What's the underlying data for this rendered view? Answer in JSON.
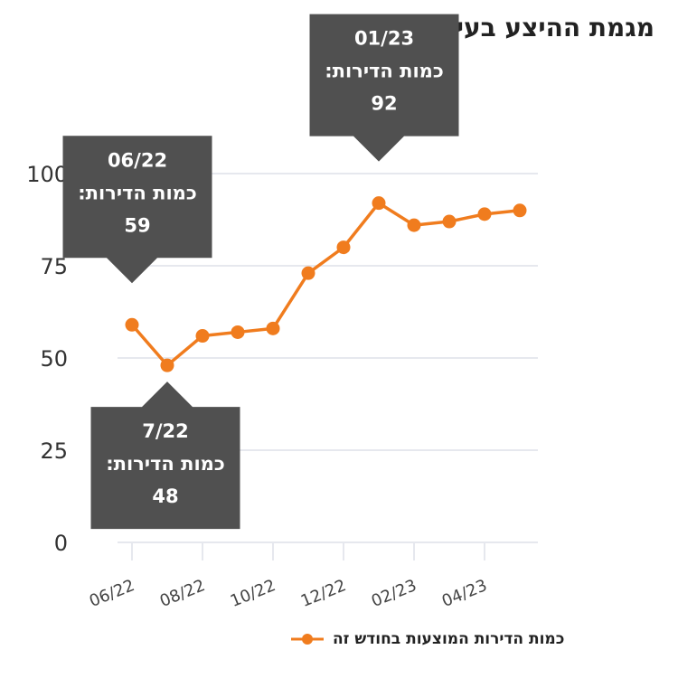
{
  "title": "מגמת ההיצע בעיר",
  "accent_color": "#f07c1e",
  "tooltip_color": "#505050",
  "grid_color": "#e6e8ee",
  "tooltips": [
    {
      "index": 0,
      "date": "06/22",
      "label": "כמות הדירות:",
      "value": "59",
      "position": "above"
    },
    {
      "index": 1,
      "date": "7/22",
      "label": "כמות הדירות:",
      "value": "48",
      "position": "below"
    },
    {
      "index": 7,
      "date": "01/23",
      "label": "כמות הדירות:",
      "value": "92",
      "position": "above"
    }
  ],
  "legend": {
    "label": "כמות הדירות המוצעות בחודש זה",
    "icon": "line-dot-icon"
  },
  "chart_data": {
    "type": "line",
    "title": "מגמת ההיצע בעיר",
    "xlabel": "",
    "ylabel": "",
    "ylim": [
      0,
      100
    ],
    "yticks": [
      0,
      25,
      50,
      75,
      100
    ],
    "grid": true,
    "x_tick_labels": [
      "06/22",
      "08/22",
      "10/22",
      "12/22",
      "02/23",
      "04/23"
    ],
    "x_tick_indices": [
      0,
      2,
      4,
      6,
      8,
      10
    ],
    "series": [
      {
        "name": "כמות הדירות המוצעות בחודש זה",
        "values": [
          59,
          48,
          56,
          57,
          58,
          73,
          80,
          92,
          86,
          87,
          89,
          90
        ]
      }
    ]
  }
}
